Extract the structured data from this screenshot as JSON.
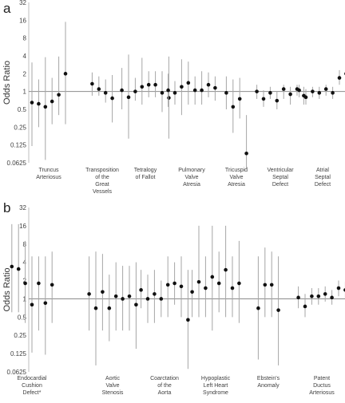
{
  "chart_data": [
    {
      "panel": "a",
      "type": "scatter",
      "ylabel": "Odds Ratio",
      "y_scale": "log2",
      "ylim": [
        0.0625,
        32
      ],
      "yticks": [
        "32",
        "16",
        "8",
        "4",
        "2",
        "1",
        "0.5",
        "0.25",
        "0.125",
        "0.0625"
      ],
      "reference_line": 1,
      "groups": [
        {
          "label": "Truncus Arteriosus",
          "points": [
            [
              0.65,
              0.12,
              3.1
            ],
            [
              0.62,
              0.25,
              1.6
            ],
            [
              0.55,
              0.07,
              3.8
            ],
            [
              0.68,
              0.28,
              1.7
            ],
            [
              0.88,
              0.4,
              3.9
            ],
            [
              2.0,
              0.28,
              15
            ]
          ]
        },
        {
          "label": "Transposition of the Great Vessels",
          "points": [
            [
              1.35,
              0.85,
              2.1
            ],
            [
              1.1,
              0.85,
              1.8
            ],
            [
              0.95,
              0.65,
              1.6
            ],
            [
              0.77,
              0.3,
              1.9
            ]
          ]
        },
        {
          "label": "Tetralogy of Fallot",
          "points": [
            [
              1.05,
              0.5,
              2.5
            ],
            [
              0.8,
              0.16,
              4.2
            ],
            [
              1.0,
              0.7,
              1.7
            ],
            [
              1.2,
              0.6,
              3.7
            ],
            [
              1.3,
              0.8,
              2.2
            ],
            [
              1.3,
              0.8,
              2.2
            ],
            [
              0.95,
              0.45,
              2.2
            ],
            [
              0.78,
              0.16,
              3.9
            ]
          ]
        },
        {
          "label": "Pulmonary Valve Atresia",
          "points": [
            [
              1.05,
              0.55,
              2.0
            ],
            [
              0.95,
              0.6,
              1.5
            ],
            [
              1.2,
              0.4,
              3.5
            ],
            [
              1.4,
              0.6,
              3.2
            ],
            [
              1.05,
              0.6,
              1.8
            ],
            [
              1.05,
              0.6,
              2.2
            ],
            [
              1.3,
              0.8,
              2.1
            ],
            [
              1.15,
              0.7,
              1.8
            ]
          ]
        },
        {
          "label": "Tricuspid Valve Atresia",
          "points": [
            [
              0.95,
              0.5,
              1.8
            ],
            [
              0.55,
              0.2,
              1.6
            ],
            [
              0.75,
              0.35,
              1.7
            ],
            [
              0.09,
              0.05,
              0.4
            ]
          ]
        },
        {
          "label": "Ventricular Septal Defect",
          "points": [
            [
              1.0,
              0.75,
              1.3
            ],
            [
              0.75,
              0.55,
              1.05
            ],
            [
              0.95,
              0.75,
              1.2
            ],
            [
              0.7,
              0.5,
              1.0
            ],
            [
              1.1,
              0.75,
              1.3
            ],
            [
              0.9,
              0.6,
              1.2
            ],
            [
              1.1,
              0.85,
              1.3
            ],
            [
              0.85,
              0.6,
              1.2
            ]
          ]
        },
        {
          "label": "Atrial Septal Defect",
          "points": [
            [
              1.05,
              0.8,
              1.3
            ],
            [
              0.8,
              0.6,
              1.1
            ],
            [
              1.0,
              0.8,
              1.2
            ],
            [
              0.95,
              0.75,
              1.2
            ],
            [
              1.1,
              0.85,
              1.3
            ],
            [
              0.95,
              0.75,
              1.2
            ],
            [
              1.7,
              1.3,
              2.3
            ],
            [
              2.0,
              1.5,
              2.6
            ]
          ]
        }
      ]
    },
    {
      "panel": "b",
      "type": "scatter",
      "ylabel": "Odds Ratio",
      "y_scale": "log2",
      "ylim": [
        0.0625,
        32
      ],
      "yticks": [
        "32",
        "16",
        "8",
        "4",
        "2",
        "1",
        "0.5",
        "0.25",
        "0.125",
        "0.0625"
      ],
      "reference_line": 1,
      "groups": [
        {
          "label": "Endocardial Cushion Defect*",
          "points": [
            [
              3.4,
              0.6,
              17
            ],
            [
              3.1,
              0.6,
              17
            ],
            [
              1.8,
              0.4,
              9
            ],
            [
              0.8,
              0.13,
              5
            ],
            [
              1.8,
              0.3,
              5
            ],
            [
              0.85,
              0.12,
              5
            ],
            [
              1.7,
              0.4,
              6
            ]
          ]
        },
        {
          "label": "Aortic Valve Stenosis",
          "points": [
            [
              1.2,
              0.3,
              5
            ],
            [
              0.7,
              0.08,
              6
            ],
            [
              1.3,
              0.3,
              5.5
            ],
            [
              0.7,
              0.2,
              2.5
            ],
            [
              1.1,
              0.3,
              4
            ],
            [
              1.0,
              0.3,
              3.5
            ],
            [
              1.1,
              0.3,
              3.5
            ],
            [
              0.8,
              0.15,
              4
            ]
          ]
        },
        {
          "label": "Coarctation of the Aorta",
          "points": [
            [
              1.4,
              0.7,
              3
            ],
            [
              1.0,
              0.4,
              2.5
            ],
            [
              1.2,
              0.4,
              3
            ],
            [
              1.0,
              0.5,
              2
            ],
            [
              1.7,
              0.5,
              5
            ],
            [
              1.8,
              0.8,
              4
            ],
            [
              1.6,
              0.5,
              5
            ],
            [
              0.45,
              0.07,
              3
            ]
          ]
        },
        {
          "label": "Hypoplastic Left Heart Syndrome",
          "points": [
            [
              1.3,
              0.5,
              3
            ],
            [
              1.9,
              0.5,
              16
            ],
            [
              1.5,
              0.5,
              5
            ],
            [
              2.3,
              0.3,
              16
            ],
            [
              1.8,
              0.6,
              6
            ],
            [
              3.0,
              0.5,
              16
            ],
            [
              1.5,
              0.5,
              5
            ],
            [
              1.8,
              0.4,
              9
            ]
          ]
        },
        {
          "label": "Ebstein's Anomaly",
          "points": [
            [
              0.7,
              0.1,
              5
            ],
            [
              1.7,
              0.5,
              7
            ],
            [
              1.7,
              0.5,
              6
            ],
            [
              0.65,
              0.08,
              5
            ]
          ]
        },
        {
          "label": "Patent Ductus Arteriosus",
          "points": [
            [
              1.05,
              0.7,
              1.6
            ],
            [
              0.75,
              0.5,
              1.2
            ],
            [
              1.1,
              0.8,
              1.5
            ],
            [
              1.1,
              0.8,
              1.5
            ],
            [
              1.2,
              0.9,
              1.6
            ],
            [
              1.05,
              0.8,
              1.4
            ],
            [
              1.5,
              1.1,
              2.0
            ],
            [
              1.4,
              1.0,
              1.9
            ]
          ]
        }
      ]
    }
  ]
}
